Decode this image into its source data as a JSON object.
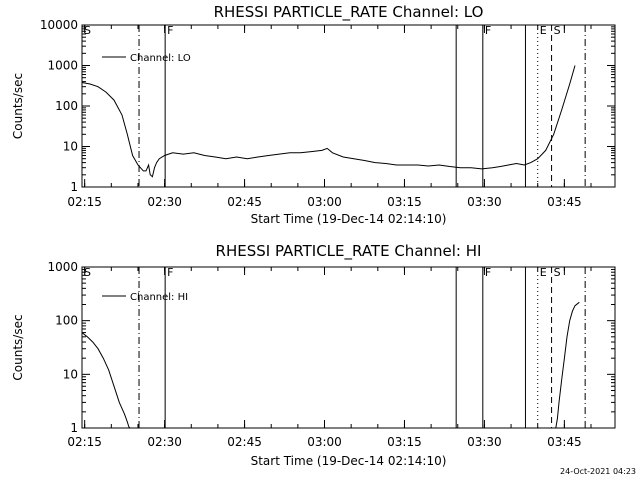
{
  "chart_data": [
    {
      "type": "line",
      "title": "RHESSI PARTICLE_RATE Channel: LO",
      "xlabel": "Start Time (19-Dec-14 02:14:10)",
      "ylabel": "Counts/sec",
      "x_tick_labels": [
        "02:15",
        "02:30",
        "02:45",
        "03:00",
        "03:15",
        "03:30",
        "03:45"
      ],
      "x_tick_values": [
        0.5,
        15.5,
        30.5,
        45.5,
        60.5,
        75.5,
        90.5
      ],
      "xlim": [
        0,
        100
      ],
      "y_scale": "log",
      "ylim": [
        1,
        10000
      ],
      "y_tick_labels": [
        "1",
        "10",
        "100",
        "1000",
        "10000"
      ],
      "y_tick_values": [
        1,
        10,
        100,
        1000,
        10000
      ],
      "legend": {
        "position": "top-left",
        "entries": [
          "Channel: LO"
        ]
      },
      "series": [
        {
          "name": "Channel: LO",
          "x": [
            0,
            1.5,
            3,
            4.5,
            6,
            7.5,
            8.5,
            9.5,
            10.5,
            11.5,
            12,
            12.5,
            12.8,
            13.2,
            13.6,
            14,
            14.5,
            15.5,
            17,
            19,
            21,
            23,
            25,
            27,
            29,
            31,
            33,
            35,
            37,
            39,
            41,
            43,
            45,
            46,
            47,
            49,
            51,
            53,
            55,
            57,
            59,
            61,
            63,
            65,
            67,
            69,
            71,
            73,
            75,
            77,
            78.5,
            80,
            81.5,
            83,
            84.2,
            85.5,
            87,
            88.5,
            90,
            91.5,
            92.5
          ],
          "y": [
            380,
            350,
            300,
            220,
            140,
            60,
            20,
            6,
            3.5,
            2.5,
            2.5,
            3.5,
            2,
            1.8,
            3,
            4,
            5,
            6,
            7,
            6.5,
            7,
            6,
            5.5,
            5,
            5.5,
            5,
            5.5,
            6,
            6.5,
            7,
            7,
            7.5,
            8,
            9,
            7,
            5.5,
            5,
            4.5,
            4,
            3.8,
            3.5,
            3.5,
            3.5,
            3.3,
            3.5,
            3.2,
            3,
            3,
            2.8,
            3,
            3.2,
            3.5,
            3.8,
            3.5,
            4,
            5,
            8,
            20,
            80,
            350,
            1000
          ]
        }
      ],
      "markers": [
        {
          "label": "S",
          "x": 0,
          "style": "solid"
        },
        {
          "label": "",
          "x": 10.7,
          "style": "dashdot"
        },
        {
          "label": "F",
          "x": 15.6,
          "style": "solid"
        },
        {
          "label": "",
          "x": 70.2,
          "style": "solid"
        },
        {
          "label": "F",
          "x": 75.2,
          "style": "solid"
        },
        {
          "label": "",
          "x": 83.2,
          "style": "solid"
        },
        {
          "label": "E",
          "x": 85.5,
          "style": "dotted"
        },
        {
          "label": "S",
          "x": 88.1,
          "style": "dashed"
        },
        {
          "label": "",
          "x": 94.4,
          "style": "dashdot"
        }
      ]
    },
    {
      "type": "line",
      "title": "RHESSI PARTICLE_RATE Channel: HI",
      "xlabel": "Start Time (19-Dec-14 02:14:10)",
      "ylabel": "Counts/sec",
      "x_tick_labels": [
        "02:15",
        "02:30",
        "02:45",
        "03:00",
        "03:15",
        "03:30",
        "03:45"
      ],
      "x_tick_values": [
        0.5,
        15.5,
        30.5,
        45.5,
        60.5,
        75.5,
        90.5
      ],
      "xlim": [
        0,
        100
      ],
      "y_scale": "log",
      "ylim": [
        1,
        1000
      ],
      "y_tick_labels": [
        "1",
        "10",
        "100",
        "1000"
      ],
      "y_tick_values": [
        1,
        10,
        100,
        1000
      ],
      "legend": {
        "position": "top-left",
        "entries": [
          "Channel: HI"
        ]
      },
      "series": [
        {
          "name": "Channel: HI",
          "x": [
            0,
            1,
            2,
            3,
            4,
            5,
            6,
            7,
            8,
            8.5,
            8.8,
            9.0
          ],
          "y": [
            60,
            50,
            40,
            30,
            20,
            12,
            6,
            3,
            1.8,
            1.3,
            1.05,
            1
          ],
          "x2": [
            88.9,
            89.2,
            89.5,
            90,
            90.5,
            91,
            91.5,
            92,
            92.5,
            93.3
          ],
          "y2": [
            1,
            1.5,
            3,
            8,
            20,
            50,
            100,
            150,
            190,
            220
          ]
        }
      ],
      "markers": [
        {
          "label": "S",
          "x": 0,
          "style": "solid"
        },
        {
          "label": "",
          "x": 10.7,
          "style": "dashdot"
        },
        {
          "label": "F",
          "x": 15.6,
          "style": "solid"
        },
        {
          "label": "",
          "x": 70.2,
          "style": "solid"
        },
        {
          "label": "F",
          "x": 75.2,
          "style": "solid"
        },
        {
          "label": "",
          "x": 83.2,
          "style": "solid"
        },
        {
          "label": "E",
          "x": 85.5,
          "style": "dotted"
        },
        {
          "label": "S",
          "x": 88.1,
          "style": "dashed"
        },
        {
          "label": "",
          "x": 94.4,
          "style": "dashdot"
        }
      ]
    }
  ],
  "footer": {
    "timestamp": "24-Oct-2021 04:23"
  }
}
